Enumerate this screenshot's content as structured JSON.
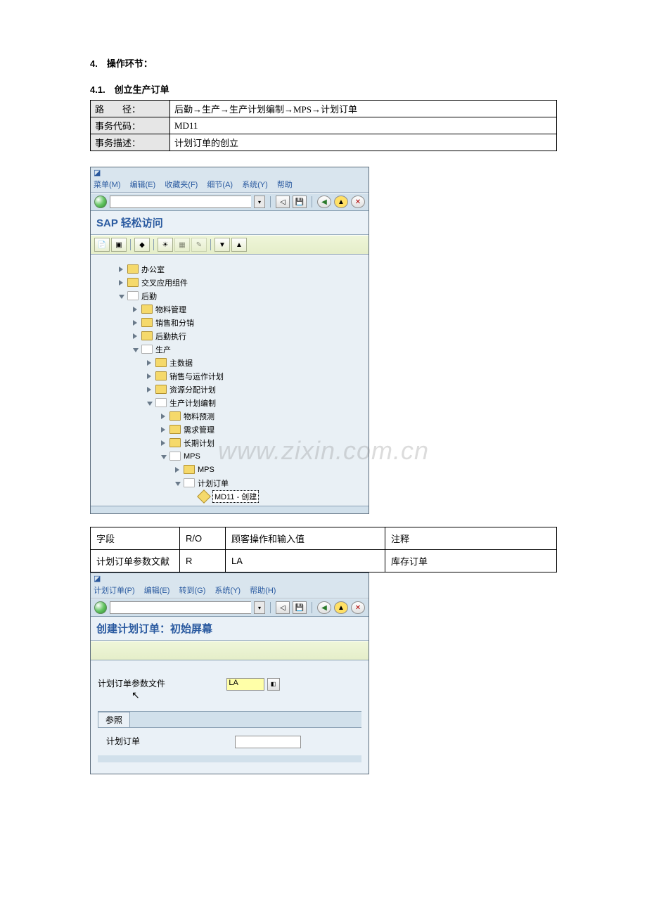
{
  "doc": {
    "heading4": "4.　操作环节：",
    "heading41": "4.1.　创立生产订单",
    "watermark": "www.zixin.com.cn",
    "info_rows": [
      {
        "label": "路　　径：",
        "value": "后勤→生产→生产计划编制→MPS→计划订单"
      },
      {
        "label": "事务代码：",
        "value": "MD11"
      },
      {
        "label": "事务描述：",
        "value": "计划订单的创立"
      }
    ],
    "field_table": {
      "headers": [
        "字段",
        "R/O",
        "顾客操作和输入值",
        "注释"
      ],
      "rows": [
        {
          "field": "计划订单参数文献",
          "ro": "R",
          "input": "LA",
          "note": "库存订单"
        }
      ]
    }
  },
  "sap1": {
    "menus": [
      "菜单(M)",
      "编辑(E)",
      "收藏夹(F)",
      "细节(A)",
      "系统(Y)",
      "帮助"
    ],
    "title": "SAP 轻松访问",
    "nodes": [
      {
        "indent": 1,
        "exp": "c",
        "open": false,
        "label": "办公室"
      },
      {
        "indent": 1,
        "exp": "c",
        "open": false,
        "label": "交叉应用组件"
      },
      {
        "indent": 1,
        "exp": "o",
        "open": true,
        "label": "后勤"
      },
      {
        "indent": 2,
        "exp": "c",
        "open": false,
        "label": "物料管理"
      },
      {
        "indent": 2,
        "exp": "c",
        "open": false,
        "label": "销售和分销"
      },
      {
        "indent": 2,
        "exp": "c",
        "open": false,
        "label": "后勤执行"
      },
      {
        "indent": 2,
        "exp": "o",
        "open": true,
        "label": "生产"
      },
      {
        "indent": 3,
        "exp": "c",
        "open": false,
        "label": "主数据"
      },
      {
        "indent": 3,
        "exp": "c",
        "open": false,
        "label": "销售与运作计划"
      },
      {
        "indent": 3,
        "exp": "c",
        "open": false,
        "label": "资源分配计划"
      },
      {
        "indent": 3,
        "exp": "o",
        "open": true,
        "label": "生产计划编制"
      },
      {
        "indent": 4,
        "exp": "c",
        "open": false,
        "label": "物料预测"
      },
      {
        "indent": 4,
        "exp": "c",
        "open": false,
        "label": "需求管理"
      },
      {
        "indent": 4,
        "exp": "c",
        "open": false,
        "label": "长期计划"
      },
      {
        "indent": 4,
        "exp": "o",
        "open": true,
        "label": "MPS"
      },
      {
        "indent": 5,
        "exp": "c",
        "open": false,
        "label": "MPS"
      },
      {
        "indent": 5,
        "exp": "o",
        "open": true,
        "label": "计划订单"
      }
    ],
    "leaf": "MD11 - 创建"
  },
  "sap2": {
    "menus": [
      "计划订单(P)",
      "编辑(E)",
      "转到(G)",
      "系统(Y)",
      "帮助(H)"
    ],
    "title": "创建计划订单：初始屏幕",
    "param_label": "计划订单参数文件",
    "param_value": "LA",
    "ref_tab": "参照",
    "ref_label": "计划订单"
  }
}
